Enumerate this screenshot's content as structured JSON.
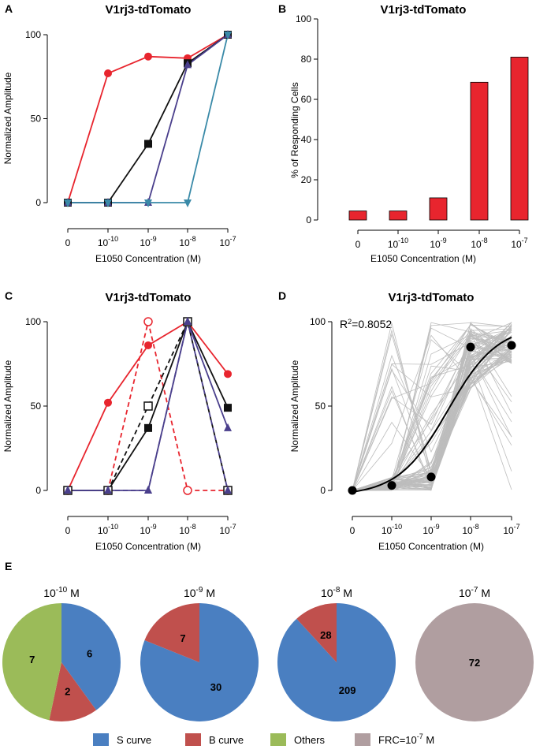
{
  "chart_data": [
    {
      "panel": "A",
      "type": "line",
      "title": "V1rj3-tdTomato",
      "xlabel": "E1050 Concentration (M)",
      "ylabel": "Normalized Amplitude",
      "categories": [
        {
          "base": "0",
          "exp": ""
        },
        {
          "base": "10",
          "exp": "-10"
        },
        {
          "base": "10",
          "exp": "-9"
        },
        {
          "base": "10",
          "exp": "-8"
        },
        {
          "base": "10",
          "exp": "-7"
        }
      ],
      "yticks": [
        "0",
        "50",
        "100"
      ],
      "ylim": [
        0,
        100
      ],
      "series": [
        {
          "name": "red",
          "color": "#e8252e",
          "marker": "circle",
          "dash": false,
          "values": [
            0,
            77,
            87,
            86,
            100
          ]
        },
        {
          "name": "black",
          "color": "#111111",
          "marker": "square",
          "dash": false,
          "values": [
            0,
            0,
            35,
            83,
            100
          ]
        },
        {
          "name": "purple",
          "color": "#4a3f8c",
          "marker": "triangle-up",
          "dash": false,
          "values": [
            0,
            0,
            0,
            82,
            100
          ]
        },
        {
          "name": "teal",
          "color": "#3a8aa8",
          "marker": "triangle-down",
          "dash": false,
          "values": [
            0,
            0,
            0,
            0,
            100
          ]
        }
      ]
    },
    {
      "panel": "B",
      "type": "bar",
      "title": "V1rj3-tdTomato",
      "xlabel": "E1050 Concentration (M)",
      "ylabel": "% of Responding Cells",
      "categories": [
        {
          "base": "0",
          "exp": ""
        },
        {
          "base": "10",
          "exp": "-10"
        },
        {
          "base": "10",
          "exp": "-9"
        },
        {
          "base": "10",
          "exp": "-8"
        },
        {
          "base": "10",
          "exp": "-7"
        }
      ],
      "values": [
        4.5,
        4.5,
        11,
        68.5,
        81
      ],
      "yticks": [
        "0",
        "20",
        "40",
        "60",
        "80",
        "100"
      ],
      "ylim": [
        0,
        100
      ],
      "color": "#e8252e"
    },
    {
      "panel": "C",
      "type": "line",
      "title": "V1rj3-tdTomato",
      "xlabel": "E1050 Concentration (M)",
      "ylabel": "Normalized Amplitude",
      "categories": [
        {
          "base": "0",
          "exp": ""
        },
        {
          "base": "10",
          "exp": "-10"
        },
        {
          "base": "10",
          "exp": "-9"
        },
        {
          "base": "10",
          "exp": "-8"
        },
        {
          "base": "10",
          "exp": "-7"
        }
      ],
      "yticks": [
        "0",
        "50",
        "100"
      ],
      "ylim": [
        0,
        100
      ],
      "series": [
        {
          "name": "red",
          "color": "#e8252e",
          "marker": "circle",
          "dash": false,
          "values": [
            0,
            52,
            86,
            100,
            69
          ]
        },
        {
          "name": "red-open",
          "color": "#e8252e",
          "marker": "circle-open",
          "dash": true,
          "values": [
            0,
            0,
            100,
            0,
            0
          ]
        },
        {
          "name": "black",
          "color": "#111111",
          "marker": "square",
          "dash": false,
          "values": [
            0,
            0,
            37,
            100,
            49
          ]
        },
        {
          "name": "black-open",
          "color": "#111111",
          "marker": "square-open",
          "dash": true,
          "values": [
            0,
            0,
            50,
            100,
            0
          ]
        },
        {
          "name": "purple",
          "color": "#4a3f8c",
          "marker": "triangle-up",
          "dash": false,
          "values": [
            0,
            0,
            0,
            100,
            37
          ]
        },
        {
          "name": "purple-dash",
          "color": "#4a3f8c",
          "marker": "triangle-up",
          "dash": true,
          "values": [
            0,
            0,
            0,
            100,
            0
          ]
        }
      ]
    },
    {
      "panel": "D",
      "type": "line",
      "title": "V1rj3-tdTomato",
      "xlabel": "E1050 Concentration (M)",
      "ylabel": "Normalized Amplitude",
      "annotation": {
        "prefix": "R",
        "sup": "2",
        "suffix": "=0.8052"
      },
      "categories": [
        {
          "base": "0",
          "exp": ""
        },
        {
          "base": "10",
          "exp": "-10"
        },
        {
          "base": "10",
          "exp": "-9"
        },
        {
          "base": "10",
          "exp": "-8"
        },
        {
          "base": "10",
          "exp": "-7"
        }
      ],
      "yticks": [
        "0",
        "50",
        "100"
      ],
      "ylim": [
        0,
        100
      ],
      "mean_points": [
        0,
        3,
        8,
        85,
        86
      ],
      "fit": {
        "type": "sigmoid",
        "bottom": -3,
        "top": 98,
        "x50": 2.4,
        "slope": 1.6
      },
      "background_traces": "many individual gray cell traces"
    },
    {
      "panel": "E",
      "type": "pie",
      "pies": [
        {
          "label": {
            "base": "10",
            "exp": "-10",
            "unit": "M"
          },
          "slices": [
            {
              "name": "S curve",
              "value": 6
            },
            {
              "name": "B curve",
              "value": 2
            },
            {
              "name": "Others",
              "value": 7
            }
          ]
        },
        {
          "label": {
            "base": "10",
            "exp": "-9",
            "unit": "M"
          },
          "slices": [
            {
              "name": "S curve",
              "value": 30
            },
            {
              "name": "B curve",
              "value": 7
            }
          ]
        },
        {
          "label": {
            "base": "10",
            "exp": "-8",
            "unit": "M"
          },
          "slices": [
            {
              "name": "S curve",
              "value": 209
            },
            {
              "name": "B curve",
              "value": 28
            }
          ]
        },
        {
          "label": {
            "base": "10",
            "exp": "-7",
            "unit": "M"
          },
          "slices": [
            {
              "name": "FRC",
              "value": 72
            }
          ]
        }
      ],
      "legend": [
        {
          "key": "S curve",
          "text": "S curve",
          "sup": "",
          "after": "",
          "color": "#4a7fc1"
        },
        {
          "key": "B curve",
          "text": "B curve",
          "sup": "",
          "after": "",
          "color": "#c0504d"
        },
        {
          "key": "Others",
          "text": "Others",
          "sup": "",
          "after": "",
          "color": "#9bbb59"
        },
        {
          "key": "FRC",
          "text": "FRC=10",
          "sup": "-7",
          "after": " M",
          "color": "#b09ea0"
        }
      ]
    }
  ],
  "panel_labels": {
    "a": "A",
    "b": "B",
    "c": "C",
    "d": "D",
    "e": "E"
  }
}
